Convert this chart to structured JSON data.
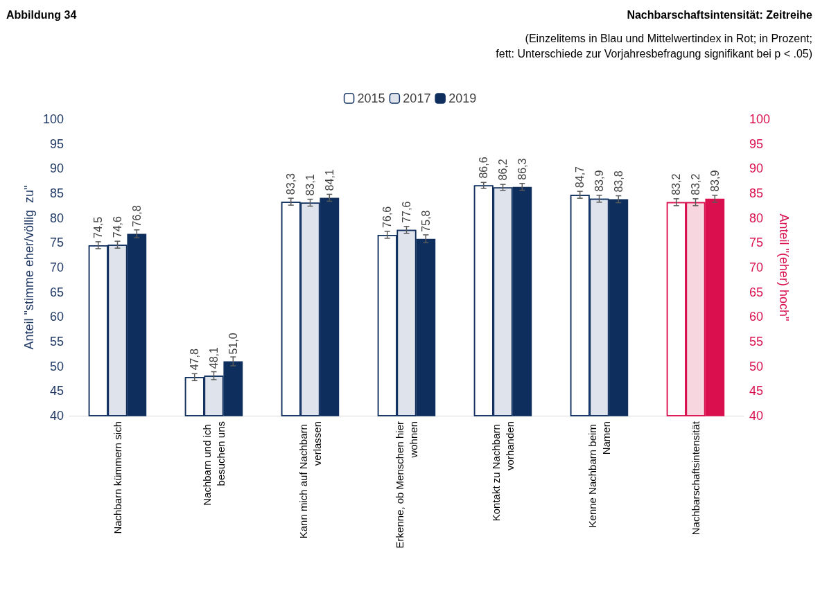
{
  "chart_data": {
    "type": "bar",
    "title": "Abbildung 34",
    "subtitle": "Nachbarschaftsintensität: Zeitreihe",
    "annotations": [
      "(Einzelitems in Blau und Mittelwertindex in Rot; in Prozent;",
      "fett: Unterschiede zur Vorjahresbefragung signifikant bei p < .05)"
    ],
    "ylabel": "Anteil \"stimme eher/völlig  zu\"",
    "y2label": "Anteil \"(eher) hoch\"",
    "categories": [
      "Nachbarn kümmern sich",
      "Nachbarn und ich besuchen uns",
      "Kann mich auf Nachbarn verlassen",
      "Erkenne, ob Menschen hier wohnen",
      "Kontakt zu Nachbarn vorhanden",
      "Kenne Nachbarn beim Namen",
      "Nachbarschaftsintensität"
    ],
    "series": [
      {
        "name": "2015",
        "color": "#ffffff",
        "colors": [
          "#ffffff",
          "#ffffff",
          "#ffffff",
          "#ffffff",
          "#ffffff",
          "#ffffff",
          "#ffffff"
        ],
        "values": [
          74.5,
          47.8,
          83.3,
          76.6,
          86.6,
          84.7,
          83.2
        ],
        "value_labels": [
          "74,5",
          "47,8",
          "83,3",
          "76,6",
          "86,6",
          "84,7",
          "83,2"
        ],
        "errors": [
          0.7,
          0.7,
          0.7,
          0.7,
          0.6,
          0.7,
          0.7
        ]
      },
      {
        "name": "2017",
        "color": "#dfe3ec",
        "colors": [
          "#dfe3ec",
          "#dfe3ec",
          "#dfe3ec",
          "#dfe3ec",
          "#dfe3ec",
          "#dfe3ec",
          "#f7d6e0"
        ],
        "values": [
          74.6,
          48.1,
          83.1,
          77.6,
          86.2,
          83.9,
          83.2
        ],
        "value_labels": [
          "74,6",
          "48,1",
          "83,1",
          "77,6",
          "86,2",
          "83,9",
          "83,2"
        ],
        "errors": [
          0.7,
          0.8,
          0.7,
          0.7,
          0.6,
          0.7,
          0.7
        ]
      },
      {
        "name": "2019",
        "color": "#0e2f5e",
        "colors": [
          "#0e2f5e",
          "#0e2f5e",
          "#0e2f5e",
          "#0e2f5e",
          "#0e2f5e",
          "#0e2f5e",
          "#d90f4e"
        ],
        "values": [
          76.8,
          51.0,
          84.1,
          75.8,
          86.3,
          83.8,
          83.9
        ],
        "value_labels": [
          "76,8",
          "51,0",
          "84,1",
          "75,8",
          "86,3",
          "83,8",
          "83,9"
        ],
        "errors": [
          0.8,
          0.9,
          0.7,
          0.8,
          0.7,
          0.7,
          0.7
        ]
      }
    ],
    "ylim": [
      40,
      100
    ],
    "yticks": [
      40,
      45,
      50,
      55,
      60,
      65,
      70,
      75,
      80,
      85,
      90,
      95,
      100
    ],
    "y2lim": [
      40,
      100
    ],
    "y2ticks": [
      40,
      45,
      50,
      55,
      60,
      65,
      70,
      75,
      80,
      85,
      90,
      95,
      100
    ],
    "legend": "top",
    "grid": false
  }
}
